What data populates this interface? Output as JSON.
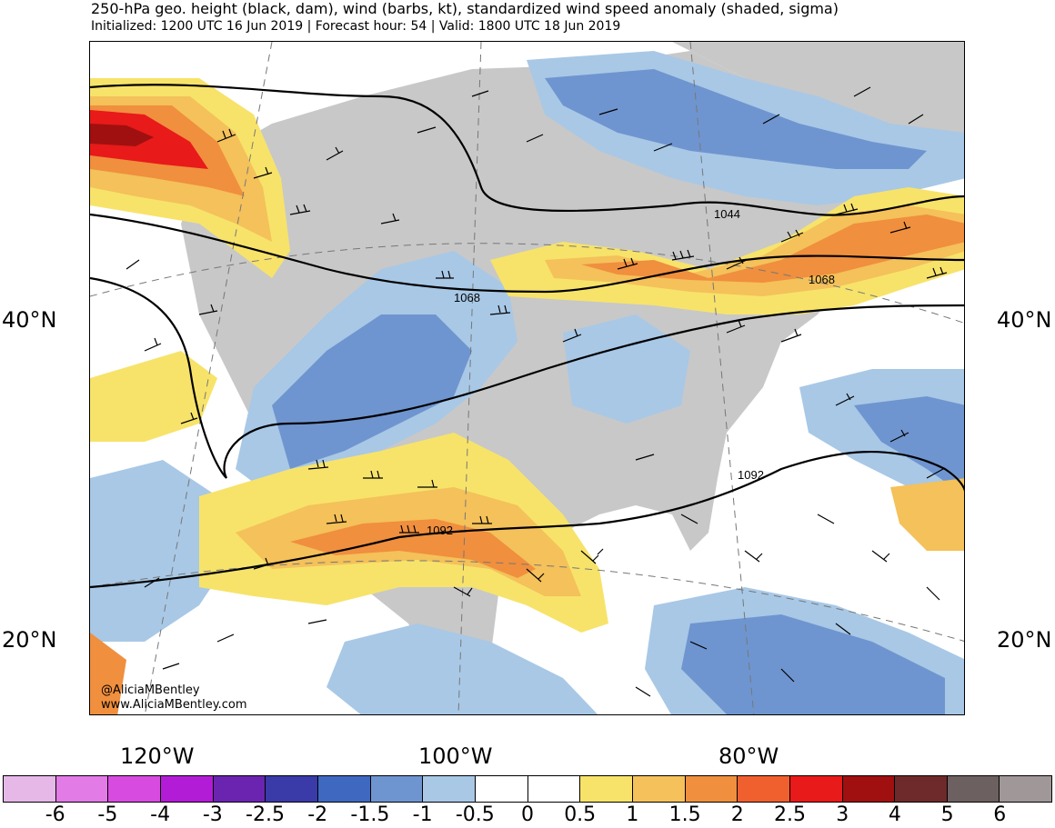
{
  "header": {
    "title": "250-hPa geo. height (black, dam), wind (barbs, kt), standardized wind speed anomaly (shaded, sigma)",
    "subtitle": "Initialized: 1200 UTC 16 Jun 2019 | Forecast hour: 54 | Valid: 1800 UTC 18 Jun 2019"
  },
  "map": {
    "lat_labels": [
      "40°N",
      "20°N"
    ],
    "lon_labels": [
      "120°W",
      "100°W",
      "80°W"
    ],
    "contour_labels": [
      "1044",
      "1068",
      "1068",
      "1092",
      "1092"
    ],
    "credits": [
      "@AliciaMBentley",
      "www.AliciaMBentley.com"
    ]
  },
  "colorbar": {
    "labels": [
      "-6",
      "-5",
      "-4",
      "-3",
      "-2.5",
      "-2",
      "-1.5",
      "-1",
      "-0.5",
      "0",
      "0.5",
      "1",
      "1.5",
      "2",
      "2.5",
      "3",
      "4",
      "5",
      "6"
    ],
    "colors": [
      "#e6b8e8",
      "#e27be6",
      "#d84be0",
      "#b31cd6",
      "#6b24b0",
      "#3a3aa8",
      "#3f68c0",
      "#6f95d0",
      "#a8c8e6",
      "#ffffff",
      "#ffffff",
      "#f7e36a",
      "#f4c15a",
      "#f08f3e",
      "#f0602e",
      "#e81a1a",
      "#a01010",
      "#6e2a2a",
      "#6c6060",
      "#a09898"
    ]
  },
  "colors": {
    "land": "#c8c8c8",
    "negative_anomaly": "#6f95d0",
    "positive_anomaly": "#f4c15a"
  }
}
